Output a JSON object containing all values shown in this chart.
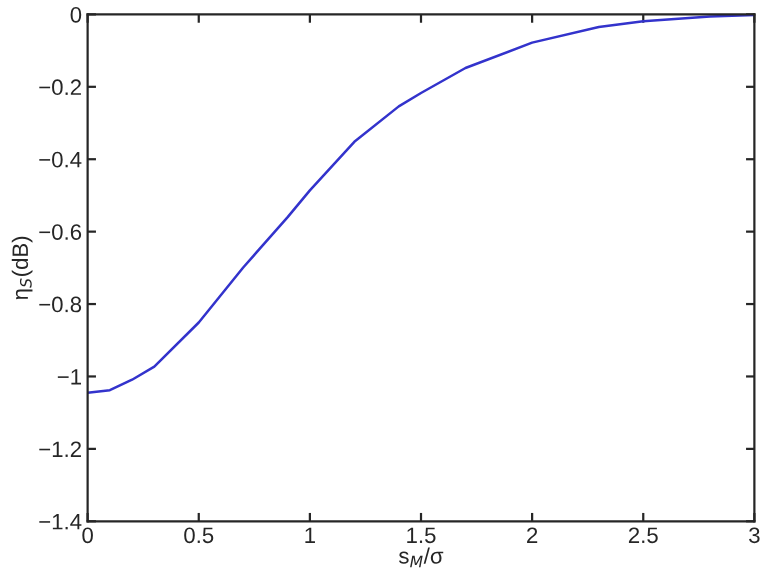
{
  "chart_data": {
    "type": "line",
    "xlabel": "s$_{M}$/σ",
    "ylabel": "η$_{S}$(dB)",
    "x": [
      0,
      0.1,
      0.2,
      0.3,
      0.5,
      0.7,
      0.9,
      1.0,
      1.2,
      1.4,
      1.5,
      1.7,
      2.0,
      2.3,
      2.5,
      2.8,
      3.0
    ],
    "series": [
      {
        "color": "#3333cc",
        "values": [
          -1.045,
          -1.038,
          -1.009,
          -0.973,
          -0.851,
          -0.699,
          -0.56,
          -0.486,
          -0.352,
          -0.254,
          -0.217,
          -0.148,
          -0.078,
          -0.035,
          -0.019,
          -0.006,
          -0.002
        ]
      }
    ],
    "xlim": [
      0,
      3
    ],
    "xticks": [
      0,
      0.5,
      1,
      1.5,
      2,
      2.5,
      3
    ],
    "ylim": [
      -1.4,
      0
    ],
    "yticks": [
      {
        "value": -1.4,
        "label": "−1.4"
      },
      {
        "value": -1.2,
        "label": "−1.2"
      },
      {
        "value": -1,
        "label": "−1"
      },
      {
        "value": -0.8,
        "label": "−0.8"
      },
      {
        "value": -0.6,
        "label": "−0.6"
      },
      {
        "value": -0.4,
        "label": "−0.4"
      },
      {
        "value": -0.2,
        "label": "−0.2"
      },
      0
    ],
    "grid": false
  }
}
